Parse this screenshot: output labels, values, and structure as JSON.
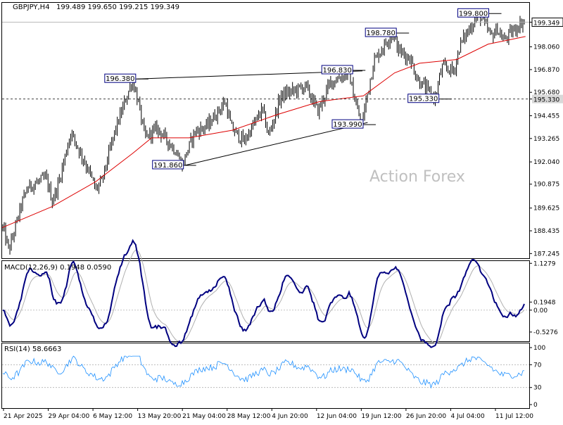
{
  "header": {
    "symbol": "GBPJPY,H4",
    "ohlc": "199.489 199.650 199.215 199.349"
  },
  "watermark": "Action Forex",
  "colors": {
    "candle": "#000000",
    "moving_average": "#dd0000",
    "macd_line": "#000080",
    "macd_signal": "#b0b0b0",
    "rsi_line": "#1e90ff",
    "current_price_box": "#000000",
    "level_box_border": "#000080"
  },
  "chart_data": [
    {
      "type": "candlestick",
      "name": "price",
      "y_ticks": [
        "199.349",
        "198.060",
        "196.870",
        "195.680",
        "195.330",
        "194.455",
        "193.265",
        "192.040",
        "190.875",
        "189.625",
        "188.435",
        "187.245"
      ],
      "ylim": [
        187.0,
        200.4
      ],
      "current_price": 199.349,
      "horizontal_level": 195.33,
      "annotations": [
        {
          "label": "196.380",
          "x": "12 May 16:00",
          "y": 196.38
        },
        {
          "label": "196.830",
          "x": "16 Jun 12:00",
          "y": 196.83
        },
        {
          "label": "191.860",
          "x": "20 May 08:00",
          "y": 191.86
        },
        {
          "label": "193.990",
          "x": "18 Jun 04:00",
          "y": 193.99
        },
        {
          "label": "198.780",
          "x": "23 Jun 12:00",
          "y": 198.78
        },
        {
          "label": "195.330",
          "x": "30 Jun 08:00",
          "y": 195.33
        },
        {
          "label": "199.800",
          "x": "8 Jul 08:00",
          "y": 199.8
        }
      ],
      "trendlines": [
        {
          "name": "upper",
          "from": {
            "x": "12 May 16:00",
            "y": 196.38
          },
          "to": {
            "x": "17 Jun 20:00",
            "y": 196.8
          }
        },
        {
          "name": "lower",
          "from": {
            "x": "20 May 08:00",
            "y": 191.86
          },
          "to": {
            "x": "18 Jun 16:00",
            "y": 194.1
          }
        }
      ],
      "path_points": [
        {
          "x": "21 Apr 2025",
          "y": 188.6
        },
        {
          "x": "22 Apr",
          "y": 187.4
        },
        {
          "x": "24 Apr",
          "y": 189.8
        },
        {
          "x": "25 Apr",
          "y": 190.7
        },
        {
          "x": "28 Apr",
          "y": 191.2
        },
        {
          "x": "29 Apr",
          "y": 190.0
        },
        {
          "x": "30 Apr",
          "y": 190.9
        },
        {
          "x": "2 May",
          "y": 193.6
        },
        {
          "x": "5 May",
          "y": 191.5
        },
        {
          "x": "6 May",
          "y": 190.6
        },
        {
          "x": "7 May",
          "y": 191.0
        },
        {
          "x": "9 May",
          "y": 193.5
        },
        {
          "x": "12 May",
          "y": 196.38
        },
        {
          "x": "13 May",
          "y": 195.0
        },
        {
          "x": "14 May",
          "y": 193.3
        },
        {
          "x": "16 May",
          "y": 193.8
        },
        {
          "x": "19 May",
          "y": 192.6
        },
        {
          "x": "20 May",
          "y": 191.86
        },
        {
          "x": "22 May",
          "y": 193.6
        },
        {
          "x": "24 May",
          "y": 193.9
        },
        {
          "x": "27 May",
          "y": 195.2
        },
        {
          "x": "28 May",
          "y": 193.8
        },
        {
          "x": "30 May",
          "y": 193.1
        },
        {
          "x": "2 Jun",
          "y": 194.8
        },
        {
          "x": "3 Jun",
          "y": 193.4
        },
        {
          "x": "5 Jun",
          "y": 195.5
        },
        {
          "x": "9 Jun",
          "y": 196.0
        },
        {
          "x": "11 Jun",
          "y": 194.7
        },
        {
          "x": "13 Jun",
          "y": 196.2
        },
        {
          "x": "16 Jun",
          "y": 196.7
        },
        {
          "x": "17 Jun",
          "y": 195.2
        },
        {
          "x": "18 Jun",
          "y": 193.99
        },
        {
          "x": "19 Jun",
          "y": 195.6
        },
        {
          "x": "20 Jun",
          "y": 197.3
        },
        {
          "x": "23 Jun",
          "y": 198.78
        },
        {
          "x": "24 Jun",
          "y": 197.9
        },
        {
          "x": "26 Jun",
          "y": 197.4
        },
        {
          "x": "27 Jun",
          "y": 196.4
        },
        {
          "x": "30 Jun",
          "y": 195.33
        },
        {
          "x": "1 Jul",
          "y": 197.0
        },
        {
          "x": "3 Jul",
          "y": 196.8
        },
        {
          "x": "4 Jul",
          "y": 198.2
        },
        {
          "x": "7 Jul",
          "y": 199.8
        },
        {
          "x": "9 Jul",
          "y": 198.6
        },
        {
          "x": "10 Jul",
          "y": 199.0
        },
        {
          "x": "11 Jul",
          "y": 198.4
        },
        {
          "x": "14 Jul",
          "y": 199.35
        }
      ],
      "moving_average_points": [
        {
          "x": "21 Apr 2025",
          "y": 188.6
        },
        {
          "x": "29 Apr",
          "y": 189.7
        },
        {
          "x": "6 May",
          "y": 191.0
        },
        {
          "x": "12 May",
          "y": 192.5
        },
        {
          "x": "15 May",
          "y": 193.3
        },
        {
          "x": "21 May",
          "y": 193.3
        },
        {
          "x": "28 May",
          "y": 193.7
        },
        {
          "x": "4 Jun",
          "y": 194.5
        },
        {
          "x": "11 Jun",
          "y": 195.2
        },
        {
          "x": "18 Jun",
          "y": 195.5
        },
        {
          "x": "23 Jun",
          "y": 196.7
        },
        {
          "x": "27 Jun",
          "y": 197.2
        },
        {
          "x": "3 Jul",
          "y": 197.4
        },
        {
          "x": "8 Jul",
          "y": 198.2
        },
        {
          "x": "14 Jul",
          "y": 198.6
        }
      ]
    },
    {
      "type": "line",
      "name": "macd",
      "title": "MACD(12,26,9) 0.1948 0.0590",
      "y_ticks": [
        "1.1279",
        "0.1948",
        "0.00",
        "-0.5276"
      ],
      "ylim": [
        -0.75,
        1.2
      ]
    },
    {
      "type": "line",
      "name": "rsi",
      "title": "RSI(14) 58.6663",
      "y_ticks": [
        "100",
        "70",
        "30",
        "0"
      ],
      "ylim": [
        0,
        100
      ],
      "levels": [
        70,
        30
      ]
    }
  ],
  "x_axis": {
    "tick_labels": [
      "21 Apr 2025",
      "29 Apr 04:00",
      "6 May 12:00",
      "13 May 20:00",
      "21 May 04:00",
      "28 May 12:00",
      "4 Jun 20:00",
      "12 Jun 04:00",
      "19 Jun 12:00",
      "26 Jun 20:00",
      "4 Jul 04:00",
      "11 Jul 12:00"
    ]
  }
}
